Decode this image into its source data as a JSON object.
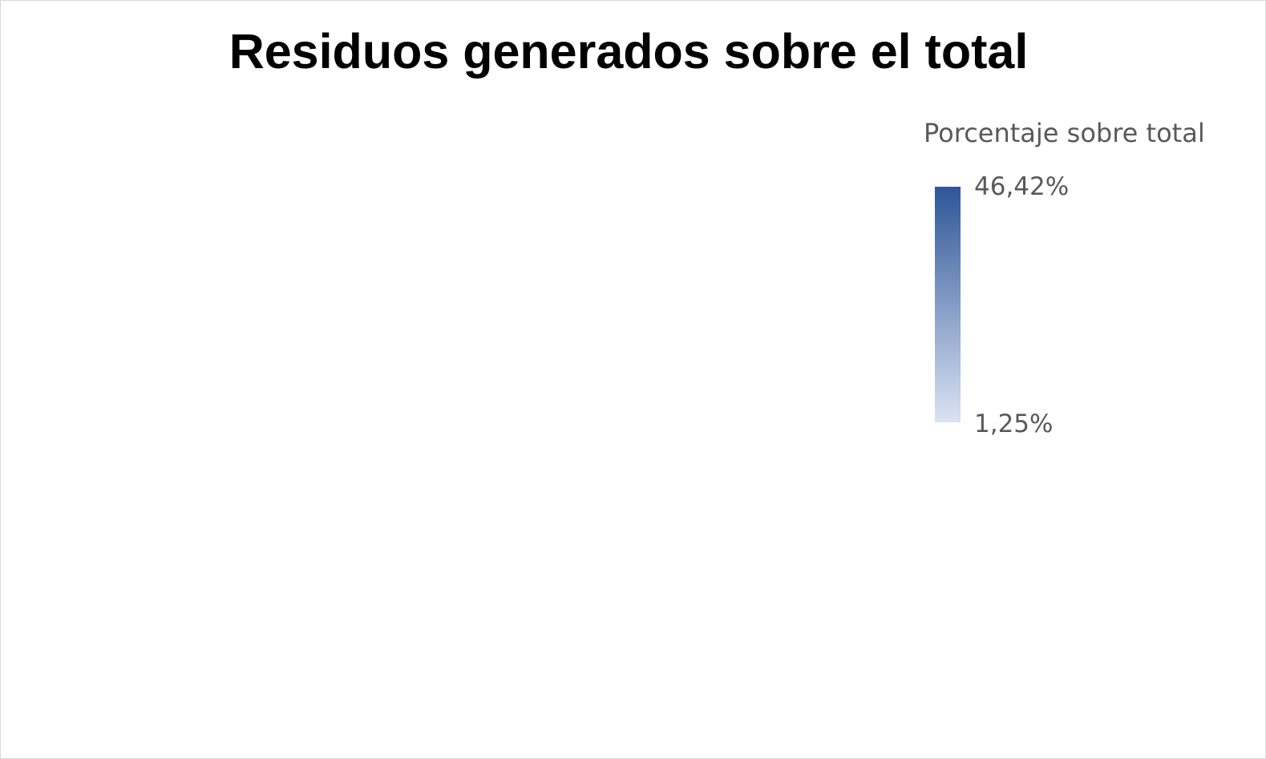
{
  "chart_data": {
    "type": "heatmap",
    "title": "Residuos generados sobre el total",
    "regions": [],
    "legend": {
      "title": "Porcentaje sobre total",
      "max_label": "46,42%",
      "min_label": "1,25%",
      "max_value": 46.42,
      "min_value": 1.25,
      "max_color": "#2e5597",
      "min_color": "#dae3f3",
      "placement": "right"
    }
  },
  "colors": {
    "border": "#d9d9d9",
    "title": "#000000",
    "legend_text": "#595959"
  }
}
